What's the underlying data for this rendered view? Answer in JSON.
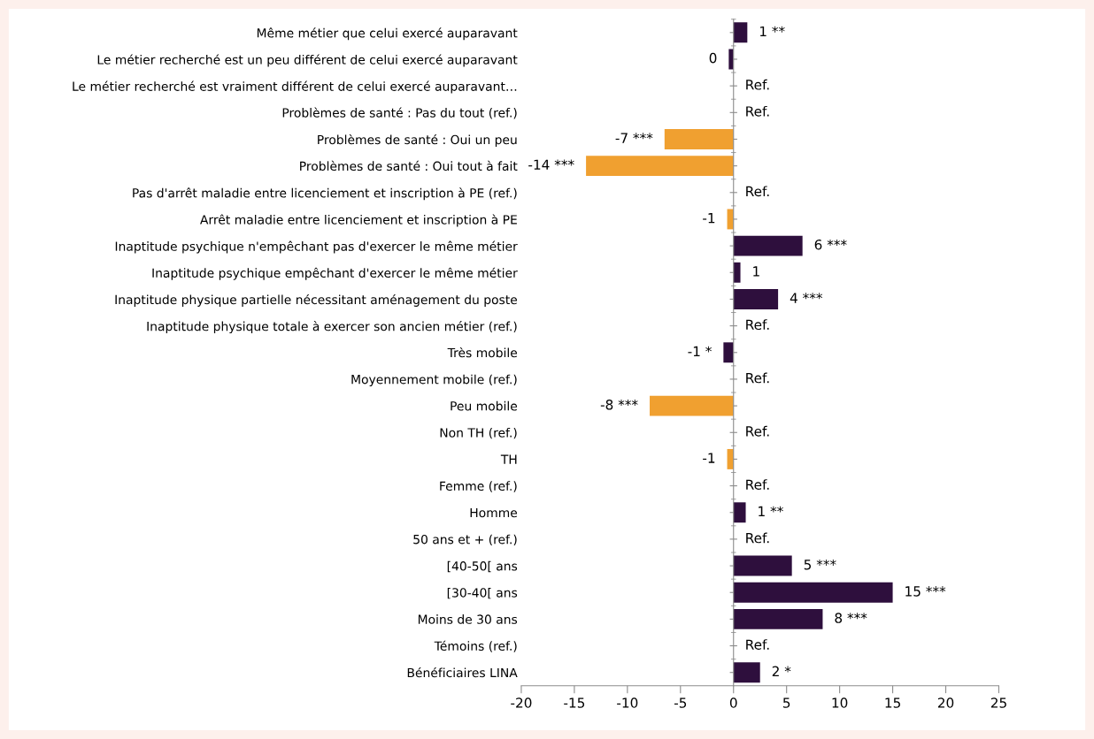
{
  "chart_data": {
    "type": "bar",
    "orientation": "horizontal",
    "categories": [
      "Même métier que celui exercé auparavant",
      "Le métier recherché est un peu différent de celui exercé auparavant",
      "Le métier recherché est vraiment différent de celui exercé auparavant…",
      "Problèmes de santé : Pas du tout (ref.)",
      "Problèmes de santé : Oui un peu",
      "Problèmes de santé : Oui tout à fait",
      "Pas d'arrêt maladie entre licenciement et inscription à PE (ref.)",
      "Arrêt maladie entre licenciement et inscription à PE",
      "Inaptitude psychique n'empêchant pas d'exercer le même métier",
      "Inaptitude psychique empêchant d'exercer le même métier",
      "Inaptitude physique partielle nécessitant aménagement du poste",
      "Inaptitude physique totale à exercer son ancien métier (ref.)",
      "Très mobile",
      "Moyennement mobile (ref.)",
      "Peu mobile",
      "Non TH (ref.)",
      "TH",
      "Femme (ref.)",
      "Homme",
      "50 ans et + (ref.)",
      "[40-50[ ans",
      "[30-40[ ans",
      "Moins de 30 ans",
      "Témoins (ref.)",
      "Bénéficiaires LINA"
    ],
    "values": [
      1.3,
      -0.45,
      null,
      null,
      -6.5,
      -13.9,
      null,
      -0.6,
      6.5,
      0.65,
      4.2,
      null,
      -0.95,
      null,
      -7.9,
      null,
      -0.6,
      null,
      1.15,
      null,
      5.5,
      15.0,
      8.4,
      null,
      2.5
    ],
    "colors": [
      "#2e0f3d",
      "#2e0f3d",
      null,
      null,
      "#f0a030",
      "#f0a030",
      null,
      "#f0a030",
      "#2e0f3d",
      "#2e0f3d",
      "#2e0f3d",
      null,
      "#2e0f3d",
      null,
      "#f0a030",
      null,
      "#f0a030",
      null,
      "#2e0f3d",
      null,
      "#2e0f3d",
      "#2e0f3d",
      "#2e0f3d",
      null,
      "#2e0f3d"
    ],
    "value_labels": [
      "1 **",
      "0",
      "Ref.",
      "Ref.",
      "-7 ***",
      "-14 ***",
      "Ref.",
      "-1",
      "6 ***",
      "1",
      "4 ***",
      "Ref.",
      "-1 *",
      "Ref.",
      "-8 ***",
      "Ref.",
      "-1",
      "Ref.",
      "1 **",
      "Ref.",
      "5 ***",
      "15 ***",
      "8 ***",
      "Ref.",
      "2 *"
    ],
    "xlim": [
      -20,
      25
    ],
    "xticks": [
      -20,
      -15,
      -10,
      -5,
      0,
      5,
      10,
      15,
      20,
      25
    ],
    "legend": false
  }
}
